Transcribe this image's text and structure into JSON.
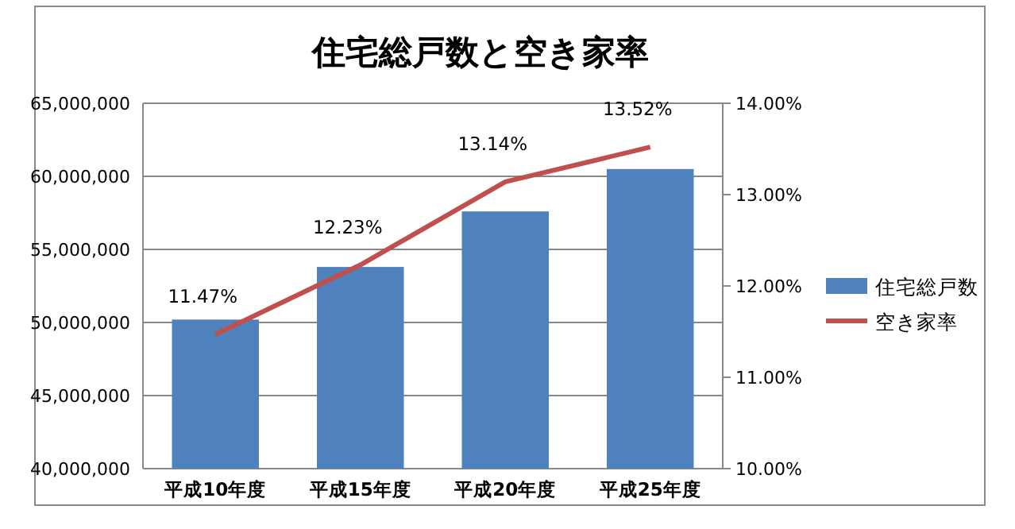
{
  "chart_data": {
    "type": "bar",
    "title": "住宅総戸数と空き家率",
    "categories": [
      "平成10年度",
      "平成15年度",
      "平成20年度",
      "平成25年度"
    ],
    "series": [
      {
        "name": "住宅総戸数",
        "color": "#4f81bd",
        "values": [
          50200000,
          53800000,
          57600000,
          60500000
        ]
      },
      {
        "name": "空き家率",
        "type": "line",
        "axis": "y2",
        "color": "#c0504d",
        "values": [
          11.47,
          12.23,
          13.14,
          13.52
        ],
        "value_labels": [
          "11.47%",
          "12.23%",
          "13.14%",
          "13.52%"
        ],
        "marker": "none",
        "line_style": "solid"
      }
    ],
    "ylim": [
      40000000,
      65000000
    ],
    "yticks": [
      {
        "value": 40000000,
        "label": "40,000,000"
      },
      {
        "value": 45000000,
        "label": "45,000,000"
      },
      {
        "value": 50000000,
        "label": "50,000,000"
      },
      {
        "value": 55000000,
        "label": "55,000,000"
      },
      {
        "value": 60000000,
        "label": "60,000,000"
      },
      {
        "value": 65000000,
        "label": "65,000,000"
      }
    ],
    "y2lim": [
      10,
      14
    ],
    "y2ticks": [
      {
        "value": 10,
        "label": "10.00%"
      },
      {
        "value": 11,
        "label": "11.00%"
      },
      {
        "value": 12,
        "label": "12.00%"
      },
      {
        "value": 13,
        "label": "13.00%"
      },
      {
        "value": 14,
        "label": "14.00%"
      }
    ],
    "grid": "y",
    "legend": "right"
  }
}
